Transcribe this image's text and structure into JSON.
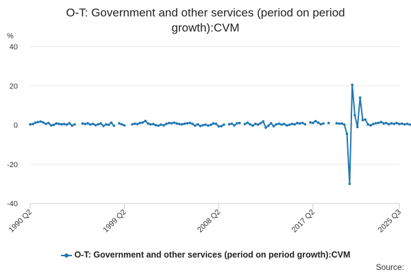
{
  "chart_data": {
    "type": "line",
    "title": "O-T: Government and other services (period on period growth):CVM",
    "title_lines": [
      "O-T: Government and other services (period on period",
      "growth):CVM"
    ],
    "ylabel": "%",
    "xlabel": "",
    "ylim": [
      -40,
      40
    ],
    "yticks": [
      40,
      20,
      0,
      -20,
      -40
    ],
    "x_ticks": [
      "1990 Q2",
      "1999 Q2",
      "2008 Q2",
      "2017 Q2",
      "2025 Q3"
    ],
    "x_start": "1990 Q2",
    "x_end": "2025 Q3",
    "grid": true,
    "legend_position": "bottom",
    "series": [
      {
        "name": "O-T: Government and other services (period on period growth):CVM",
        "color": "#1f77b4",
        "values": [
          0.3,
          0.5,
          1.2,
          1.5,
          1.8,
          1.3,
          0.6,
          1.0,
          -0.2,
          0.1,
          0.8,
          0.6,
          0.4,
          0.5,
          0.2,
          0.9,
          -0.3,
          0.3,
          null,
          null,
          0.8,
          0.5,
          0.9,
          0.2,
          0.6,
          -0.1,
          0.4,
          0.8,
          -0.5,
          0.3,
          0.1,
          1.2,
          -0.4,
          null,
          0.9,
          0.3,
          -0.2,
          null,
          null,
          0.4,
          0.7,
          0.5,
          1.1,
          1.3,
          2.1,
          0.8,
          0.3,
          0.5,
          -0.1,
          -0.3,
          0.2,
          -0.2,
          0.6,
          1.0,
          0.9,
          1.2,
          0.8,
          0.5,
          0.3,
          0.7,
          0.9,
          1.1,
          0.6,
          -0.3,
          0.4,
          -0.5,
          -0.1,
          0.2,
          -0.3,
          0.1,
          0.8,
          0.6,
          -0.7,
          -0.6,
          0.2,
          null,
          0.4,
          0.7,
          -0.2,
          0.9,
          1.0,
          null,
          0.5,
          1.2,
          0.4,
          -0.3,
          0.6,
          0.2,
          0.9,
          1.8,
          -1.3,
          -0.4,
          0.9,
          -0.6,
          0.3,
          0.7,
          0.2,
          0.5,
          -0.2,
          0.1,
          0.6,
          0.3,
          1.0,
          0.8,
          1.1,
          0.4,
          null,
          1.3,
          1.1,
          2.0,
          1.2,
          0.4,
          0.8,
          null,
          1.0,
          null,
          null,
          0.9,
          0.7,
          0.8,
          0.2,
          -4.5,
          -30.0,
          20.5,
          5.0,
          -1.0,
          14.0,
          2.5,
          2.8,
          0.3,
          -0.2,
          0.5,
          0.9,
          1.1,
          1.5,
          0.8,
          1.0,
          0.4,
          0.9,
          0.6,
          1.0,
          0.5,
          0.7,
          0.3,
          0.6,
          0.2
        ]
      }
    ],
    "source_label": "Source:"
  }
}
